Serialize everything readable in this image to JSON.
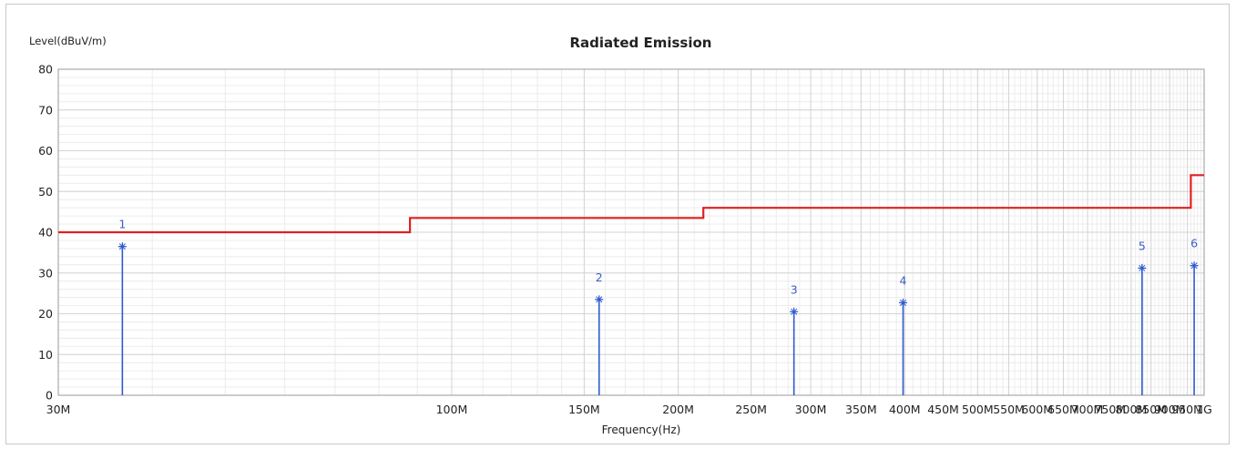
{
  "chart_data": {
    "type": "line",
    "title": "Radiated Emission",
    "ylabel": "Level(dBuV/m)",
    "xlabel": "Frequency(Hz)",
    "x_scale": "log",
    "xlim": [
      30,
      1000
    ],
    "ylim": [
      0,
      80
    ],
    "yticks": [
      0,
      10,
      20,
      30,
      40,
      50,
      60,
      70,
      80
    ],
    "xticks": [
      {
        "value": 30,
        "label": "30M"
      },
      {
        "value": 100,
        "label": "100M"
      },
      {
        "value": 150,
        "label": "150M"
      },
      {
        "value": 200,
        "label": "200M"
      },
      {
        "value": 250,
        "label": "250M"
      },
      {
        "value": 300,
        "label": "300M"
      },
      {
        "value": 350,
        "label": "350M"
      },
      {
        "value": 400,
        "label": "400M"
      },
      {
        "value": 450,
        "label": "450M"
      },
      {
        "value": 500,
        "label": "500M"
      },
      {
        "value": 550,
        "label": "550M"
      },
      {
        "value": 600,
        "label": "600M"
      },
      {
        "value": 650,
        "label": "650M"
      },
      {
        "value": 700,
        "label": "700M"
      },
      {
        "value": 750,
        "label": "750M"
      },
      {
        "value": 800,
        "label": "800M"
      },
      {
        "value": 850,
        "label": "850M"
      },
      {
        "value": 900,
        "label": "900M"
      },
      {
        "value": 950,
        "label": "950M"
      },
      {
        "value": 1000,
        "label": "1G"
      }
    ],
    "grid": true,
    "series": [
      {
        "type": "step-line",
        "color": "#e02020",
        "points": [
          [
            30,
            40
          ],
          [
            88,
            40
          ],
          [
            88,
            43.5
          ],
          [
            216,
            43.5
          ],
          [
            216,
            46
          ],
          [
            960,
            46
          ],
          [
            960,
            54
          ],
          [
            1000,
            54
          ]
        ]
      },
      {
        "type": "stem",
        "color": "#2d5bd0",
        "points": [
          {
            "label": "1",
            "x": 36.5,
            "y": 36.5
          },
          {
            "label": "2",
            "x": 157,
            "y": 23.5
          },
          {
            "label": "3",
            "x": 285,
            "y": 20.5
          },
          {
            "label": "4",
            "x": 398,
            "y": 22.7
          },
          {
            "label": "5",
            "x": 827,
            "y": 31.2
          },
          {
            "label": "6",
            "x": 970,
            "y": 31.8
          }
        ]
      }
    ]
  }
}
